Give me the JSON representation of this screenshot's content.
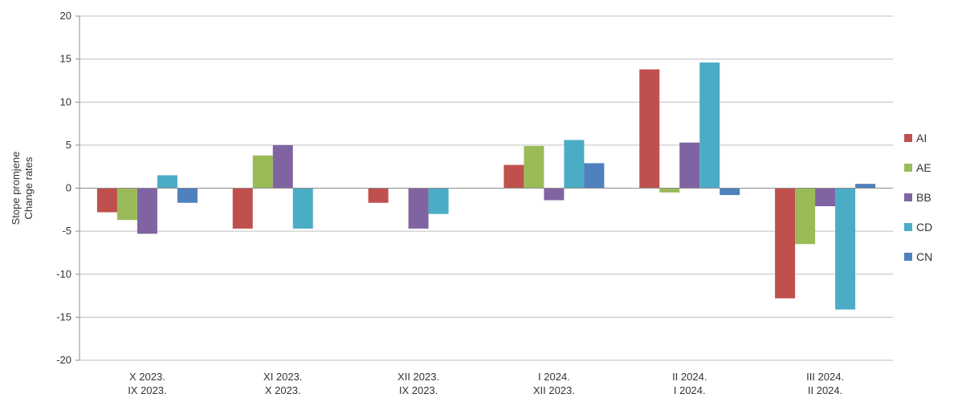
{
  "chart_data": {
    "type": "bar",
    "ylabel_lines": [
      "Stope promjene",
      "Change rates"
    ],
    "ylim": [
      -20,
      20
    ],
    "yticks": [
      20,
      15,
      10,
      5,
      0,
      -5,
      -10,
      -15,
      -20
    ],
    "grid": true,
    "legend_position": "right",
    "categories": [
      [
        "X 2023.",
        "IX 2023."
      ],
      [
        "XI 2023.",
        "X 2023."
      ],
      [
        "XII 2023.",
        "IX 2023."
      ],
      [
        "I 2024.",
        "XII 2023."
      ],
      [
        "II 2024.",
        "I 2024."
      ],
      [
        "III 2024.",
        "II 2024."
      ]
    ],
    "series": [
      {
        "name": "AI",
        "color": "#c0504d",
        "values": [
          -2.8,
          -4.7,
          -1.7,
          2.7,
          13.8,
          -12.8
        ]
      },
      {
        "name": "AE",
        "color": "#9bbb59",
        "values": [
          -3.7,
          3.8,
          0,
          4.9,
          -0.5,
          -6.5
        ]
      },
      {
        "name": "BB",
        "color": "#8064a2",
        "values": [
          -5.3,
          5.0,
          -4.7,
          -1.4,
          5.3,
          -2.1
        ]
      },
      {
        "name": "CD",
        "color": "#4bacc6",
        "values": [
          1.5,
          -4.7,
          -3.0,
          5.6,
          14.6,
          -14.1
        ]
      },
      {
        "name": "CN",
        "color": "#4f81bd",
        "values": [
          -1.7,
          0,
          0,
          2.9,
          -0.8,
          0.5
        ]
      }
    ]
  }
}
